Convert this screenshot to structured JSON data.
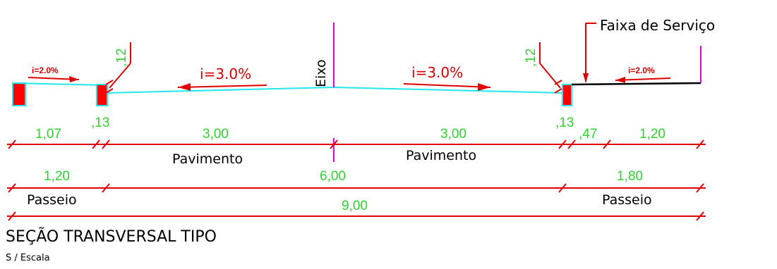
{
  "colors": {
    "pavement": "#22e6f0",
    "dimension": "#e00000",
    "text_green": "#2fd12f",
    "axis": "#e000e0",
    "curb_fill": "#ff0000"
  },
  "labels": {
    "faixa_servico": "Faixa de Serviço",
    "eixo": "Eixo",
    "slope_left_small": "i=2.0%",
    "slope_left": "i=3.0%",
    "slope_right": "i=3.0%",
    "slope_right_small": "i=2.0%",
    "curb_height_left": ",12",
    "curb_height_right": ",12",
    "pavimento_left": "Pavimento",
    "pavimento_right": "Pavimento",
    "passeio_left": "Passeio",
    "passeio_right": "Passeio",
    "title": "SEÇÃO TRANSVERSAL TIPO",
    "subtitle": "S / Escala"
  },
  "dims": {
    "row1": {
      "passeio_left": "1,07",
      "curb_left": ",13",
      "pav_left": "3,00",
      "pav_right": "3,00",
      "curb_right": ",13",
      "faixa": ",47",
      "passeio_right": "1,20"
    },
    "row2": {
      "passeio_left": "1,20",
      "pavimento": "6,00",
      "passeio_right": "1,80"
    },
    "row3": {
      "total": "9,00"
    }
  }
}
